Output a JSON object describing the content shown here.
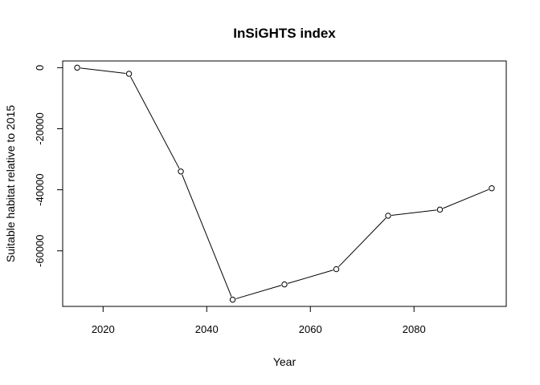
{
  "chart_data": {
    "type": "line",
    "title": "InSiGHTS index",
    "xlabel": "Year",
    "ylabel": "Suitable habitat relative to 2015",
    "x": [
      2015,
      2025,
      2035,
      2045,
      2055,
      2065,
      2075,
      2085,
      2095
    ],
    "series": [
      {
        "values": [
          0,
          -2000,
          -34000,
          -76000,
          -71000,
          -66000,
          -48500,
          -46500,
          -39500
        ]
      }
    ],
    "xticks": [
      2020,
      2040,
      2060,
      2080
    ],
    "xtick_labels": [
      "2020",
      "2040",
      "2060",
      "2080"
    ],
    "yticks": [
      0,
      -20000,
      -40000,
      -60000
    ],
    "ytick_labels": [
      "0",
      "-20000",
      "-40000",
      "-60000"
    ],
    "xlim": [
      2012.2,
      2097.8
    ],
    "ylim": [
      -78200,
      2200
    ],
    "grid": false,
    "legend": "none",
    "marker": "open-circle",
    "line_color": "#000000"
  }
}
